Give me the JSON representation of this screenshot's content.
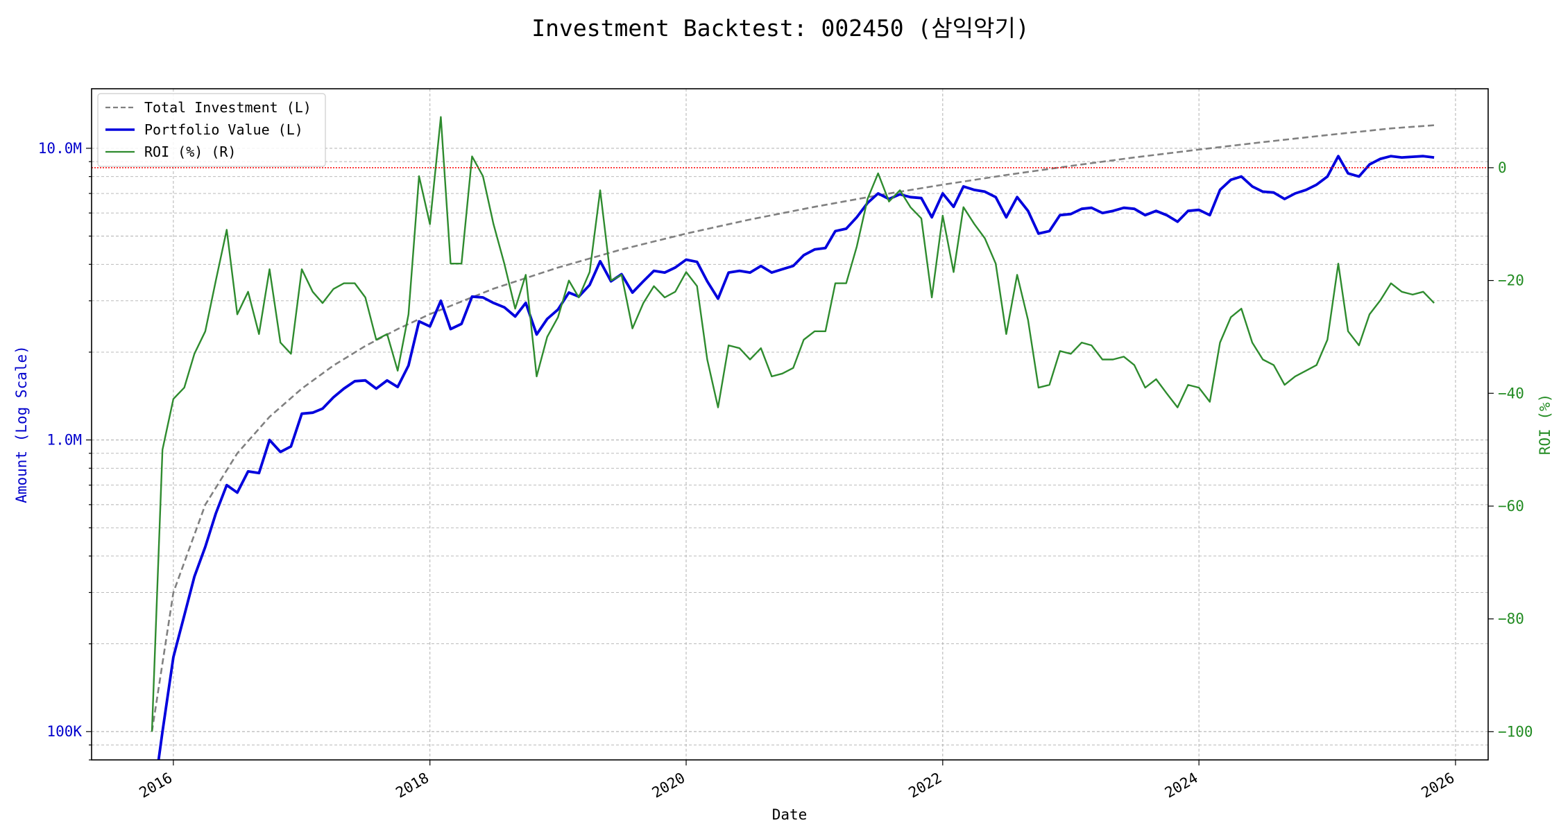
{
  "chart_data": {
    "type": "line",
    "title": "Investment Backtest: 002450 (삼익악기)",
    "xlabel": "Date",
    "ylabel_left": "Amount (Log Scale)",
    "ylabel_right": "ROI (%)",
    "left_axis_scale": "log",
    "left_ylim": [
      80000,
      16000000
    ],
    "right_ylim": [
      -105,
      14
    ],
    "x_range": [
      "2015-05-13",
      "2026-04-04"
    ],
    "x_ticks": [
      "2016",
      "2018",
      "2020",
      "2022",
      "2024",
      "2026"
    ],
    "left_ticks": [
      {
        "value": 100000,
        "label": "100K"
      },
      {
        "value": 1000000,
        "label": "1.0M"
      },
      {
        "value": 10000000,
        "label": "10.0M"
      }
    ],
    "right_ticks": [
      {
        "value": 0,
        "label": "0"
      },
      {
        "value": -20,
        "label": "−20"
      },
      {
        "value": -40,
        "label": "−40"
      },
      {
        "value": -60,
        "label": "−60"
      },
      {
        "value": -80,
        "label": "−80"
      },
      {
        "value": -100,
        "label": "−100"
      }
    ],
    "reference_line": {
      "axis": "right",
      "value": 0,
      "color": "#ff0000",
      "style": "dotted"
    },
    "grid": true,
    "legend_position": "top-left",
    "series": [
      {
        "name": "Total Investment (L)",
        "axis": "left",
        "color": "#808080",
        "style": "dashed",
        "x": [
          "2015-11-01",
          "2016-01-01",
          "2016-04-01",
          "2016-07-01",
          "2016-10-01",
          "2017-01-01",
          "2017-04-01",
          "2017-07-01",
          "2017-10-01",
          "2018-01-01",
          "2018-07-01",
          "2019-01-01",
          "2019-07-01",
          "2020-01-01",
          "2020-07-01",
          "2021-01-01",
          "2021-07-01",
          "2022-01-01",
          "2022-07-01",
          "2023-01-01",
          "2023-07-01",
          "2024-01-01",
          "2024-07-01",
          "2025-01-01",
          "2025-07-01",
          "2025-11-01"
        ],
        "values": [
          100000,
          300000,
          600000,
          900000,
          1200000,
          1500000,
          1800000,
          2100000,
          2400000,
          2700000,
          3300000,
          3900000,
          4500000,
          5100000,
          5700000,
          6300000,
          6900000,
          7500000,
          8100000,
          8700000,
          9300000,
          9900000,
          10500000,
          11100000,
          11700000,
          12000000
        ]
      },
      {
        "name": "Portfolio Value (L)",
        "axis": "left",
        "color": "#0000dd",
        "style": "solid",
        "x": [
          "2015-11-20",
          "2015-12-01",
          "2016-01-01",
          "2016-02-01",
          "2016-03-01",
          "2016-04-01",
          "2016-05-01",
          "2016-06-01",
          "2016-07-01",
          "2016-08-01",
          "2016-09-01",
          "2016-10-01",
          "2016-11-01",
          "2016-12-01",
          "2017-01-01",
          "2017-02-01",
          "2017-03-01",
          "2017-04-01",
          "2017-05-01",
          "2017-06-01",
          "2017-07-01",
          "2017-08-01",
          "2017-09-01",
          "2017-10-01",
          "2017-11-01",
          "2017-12-01",
          "2018-01-01",
          "2018-02-01",
          "2018-03-01",
          "2018-04-01",
          "2018-05-01",
          "2018-06-01",
          "2018-07-01",
          "2018-08-01",
          "2018-09-01",
          "2018-10-01",
          "2018-11-01",
          "2018-12-01",
          "2019-01-01",
          "2019-02-01",
          "2019-03-01",
          "2019-04-01",
          "2019-05-01",
          "2019-06-01",
          "2019-07-01",
          "2019-08-01",
          "2019-09-01",
          "2019-10-01",
          "2019-11-01",
          "2019-12-01",
          "2020-01-01",
          "2020-02-01",
          "2020-03-01",
          "2020-04-01",
          "2020-05-01",
          "2020-06-01",
          "2020-07-01",
          "2020-08-01",
          "2020-09-01",
          "2020-10-01",
          "2020-11-01",
          "2020-12-01",
          "2021-01-01",
          "2021-02-01",
          "2021-03-01",
          "2021-04-01",
          "2021-05-01",
          "2021-06-01",
          "2021-07-01",
          "2021-08-01",
          "2021-09-01",
          "2021-10-01",
          "2021-11-01",
          "2021-12-01",
          "2022-01-01",
          "2022-02-01",
          "2022-03-01",
          "2022-04-01",
          "2022-05-01",
          "2022-06-01",
          "2022-07-01",
          "2022-08-01",
          "2022-09-01",
          "2022-10-01",
          "2022-11-01",
          "2022-12-01",
          "2023-01-01",
          "2023-02-01",
          "2023-03-01",
          "2023-04-01",
          "2023-05-01",
          "2023-06-01",
          "2023-07-01",
          "2023-08-01",
          "2023-09-01",
          "2023-10-01",
          "2023-11-01",
          "2023-12-01",
          "2024-01-01",
          "2024-02-01",
          "2024-03-01",
          "2024-04-01",
          "2024-05-01",
          "2024-06-01",
          "2024-07-01",
          "2024-08-01",
          "2024-09-01",
          "2024-10-01",
          "2024-11-01",
          "2024-12-01",
          "2025-01-01",
          "2025-02-01",
          "2025-03-01",
          "2025-04-01",
          "2025-05-01",
          "2025-06-01",
          "2025-07-01",
          "2025-08-01",
          "2025-09-01",
          "2025-10-01",
          "2025-11-01"
        ],
        "values": [
          78000,
          100000,
          180000,
          250000,
          340000,
          430000,
          560000,
          700000,
          660000,
          780000,
          770000,
          1000000,
          910000,
          950000,
          1230000,
          1240000,
          1280000,
          1400000,
          1500000,
          1590000,
          1600000,
          1500000,
          1600000,
          1520000,
          1800000,
          2550000,
          2450000,
          3000000,
          2400000,
          2500000,
          3100000,
          3080000,
          2950000,
          2850000,
          2650000,
          2950000,
          2300000,
          2600000,
          2800000,
          3200000,
          3100000,
          3400000,
          4100000,
          3500000,
          3700000,
          3200000,
          3500000,
          3800000,
          3750000,
          3900000,
          4150000,
          4080000,
          3500000,
          3050000,
          3750000,
          3800000,
          3750000,
          3950000,
          3750000,
          3850000,
          3950000,
          4300000,
          4500000,
          4550000,
          5200000,
          5300000,
          5800000,
          6500000,
          7000000,
          6700000,
          6950000,
          6800000,
          6750000,
          5800000,
          7000000,
          6300000,
          7400000,
          7200000,
          7100000,
          6800000,
          5800000,
          6800000,
          6100000,
          5100000,
          5200000,
          5900000,
          5950000,
          6200000,
          6250000,
          6000000,
          6100000,
          6250000,
          6200000,
          5900000,
          6100000,
          5900000,
          5600000,
          6100000,
          6150000,
          5900000,
          7200000,
          7800000,
          8000000,
          7400000,
          7100000,
          7050000,
          6700000,
          7000000,
          7200000,
          7500000,
          8000000,
          9400000,
          8200000,
          8000000,
          8800000,
          9200000,
          9400000,
          9300000,
          9350000,
          9400000,
          9300000
        ]
      },
      {
        "name": "ROI (%) (R)",
        "axis": "right",
        "color": "#2e8b2e",
        "style": "solid",
        "x": [
          "2015-11-01",
          "2015-12-01",
          "2016-01-01",
          "2016-02-01",
          "2016-03-01",
          "2016-04-01",
          "2016-05-01",
          "2016-06-01",
          "2016-07-01",
          "2016-08-01",
          "2016-09-01",
          "2016-10-01",
          "2016-11-01",
          "2016-12-01",
          "2017-01-01",
          "2017-02-01",
          "2017-03-01",
          "2017-04-01",
          "2017-05-01",
          "2017-06-01",
          "2017-07-01",
          "2017-08-01",
          "2017-09-01",
          "2017-10-01",
          "2017-11-01",
          "2017-12-01",
          "2018-01-01",
          "2018-02-01",
          "2018-03-01",
          "2018-04-01",
          "2018-05-01",
          "2018-06-01",
          "2018-07-01",
          "2018-08-01",
          "2018-09-01",
          "2018-10-01",
          "2018-11-01",
          "2018-12-01",
          "2019-01-01",
          "2019-02-01",
          "2019-03-01",
          "2019-04-01",
          "2019-05-01",
          "2019-06-01",
          "2019-07-01",
          "2019-08-01",
          "2019-09-01",
          "2019-10-01",
          "2019-11-01",
          "2019-12-01",
          "2020-01-01",
          "2020-02-01",
          "2020-03-01",
          "2020-04-01",
          "2020-05-01",
          "2020-06-01",
          "2020-07-01",
          "2020-08-01",
          "2020-09-01",
          "2020-10-01",
          "2020-11-01",
          "2020-12-01",
          "2021-01-01",
          "2021-02-01",
          "2021-03-01",
          "2021-04-01",
          "2021-05-01",
          "2021-06-01",
          "2021-07-01",
          "2021-08-01",
          "2021-09-01",
          "2021-10-01",
          "2021-11-01",
          "2021-12-01",
          "2022-01-01",
          "2022-02-01",
          "2022-03-01",
          "2022-04-01",
          "2022-05-01",
          "2022-06-01",
          "2022-07-01",
          "2022-08-01",
          "2022-09-01",
          "2022-10-01",
          "2022-11-01",
          "2022-12-01",
          "2023-01-01",
          "2023-02-01",
          "2023-03-01",
          "2023-04-01",
          "2023-05-01",
          "2023-06-01",
          "2023-07-01",
          "2023-08-01",
          "2023-09-01",
          "2023-10-01",
          "2023-11-01",
          "2023-12-01",
          "2024-01-01",
          "2024-02-01",
          "2024-03-01",
          "2024-04-01",
          "2024-05-01",
          "2024-06-01",
          "2024-07-01",
          "2024-08-01",
          "2024-09-01",
          "2024-10-01",
          "2024-11-01",
          "2024-12-01",
          "2025-01-01",
          "2025-02-01",
          "2025-03-01",
          "2025-04-01",
          "2025-05-01",
          "2025-06-01",
          "2025-07-01",
          "2025-08-01",
          "2025-09-01",
          "2025-10-01",
          "2025-11-01"
        ],
        "values": [
          -100,
          -50,
          -41,
          -39,
          -33,
          -29,
          -20,
          -11,
          -26,
          -22,
          -29.5,
          -18,
          -31,
          -33,
          -18,
          -22,
          -24,
          -21.5,
          -20.5,
          -20.5,
          -23,
          -30.5,
          -29.5,
          -36,
          -26,
          -1.5,
          -10,
          9,
          -17,
          -17,
          2,
          -1.5,
          -10,
          -17,
          -25,
          -19,
          -37,
          -30,
          -26.5,
          -20,
          -23,
          -18.5,
          -4,
          -20,
          -19,
          -28.5,
          -24,
          -21,
          -23,
          -22,
          -18.5,
          -21,
          -34,
          -42.5,
          -31.5,
          -32,
          -34,
          -32,
          -37,
          -36.5,
          -35.5,
          -30.5,
          -29,
          -29,
          -20.5,
          -20.5,
          -14,
          -5.5,
          -1,
          -6,
          -4,
          -7,
          -9,
          -23,
          -8.5,
          -18.5,
          -7,
          -10,
          -12.5,
          -17,
          -29.5,
          -19,
          -27,
          -39,
          -38.5,
          -32.5,
          -33,
          -31,
          -31.5,
          -34,
          -34,
          -33.5,
          -35,
          -39,
          -37.5,
          -40,
          -42.5,
          -38.5,
          -39,
          -41.5,
          -31,
          -26.5,
          -25,
          -31,
          -34,
          -35,
          -38.5,
          -37,
          -36,
          -35,
          -30.5,
          -17,
          -29,
          -31.5,
          -26,
          -23.5,
          -20.5,
          -22,
          -22.5,
          -22,
          -24
        ]
      }
    ]
  }
}
